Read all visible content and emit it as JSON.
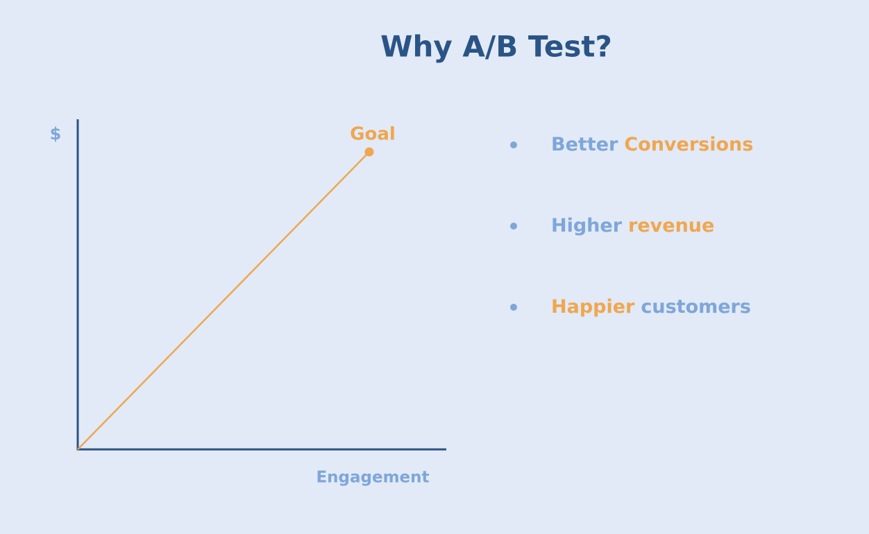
{
  "title": "Why A/B Test?",
  "diagram": {
    "y_label": "$",
    "x_label": "Engagement",
    "goal_label": "Goal"
  },
  "bullets": [
    {
      "parts": [
        {
          "text": "Better",
          "color": "#7fa6d9"
        },
        {
          "text": "Conversions",
          "color": "#f0a650"
        }
      ]
    },
    {
      "parts": [
        {
          "text": "Higher",
          "color": "#7fa6d9"
        },
        {
          "text": "revenue",
          "color": "#f0a650"
        }
      ]
    },
    {
      "parts": [
        {
          "text": "Happier",
          "color": "#f0a650"
        },
        {
          "text": "customers",
          "color": "#7fa6d9"
        }
      ]
    }
  ]
}
